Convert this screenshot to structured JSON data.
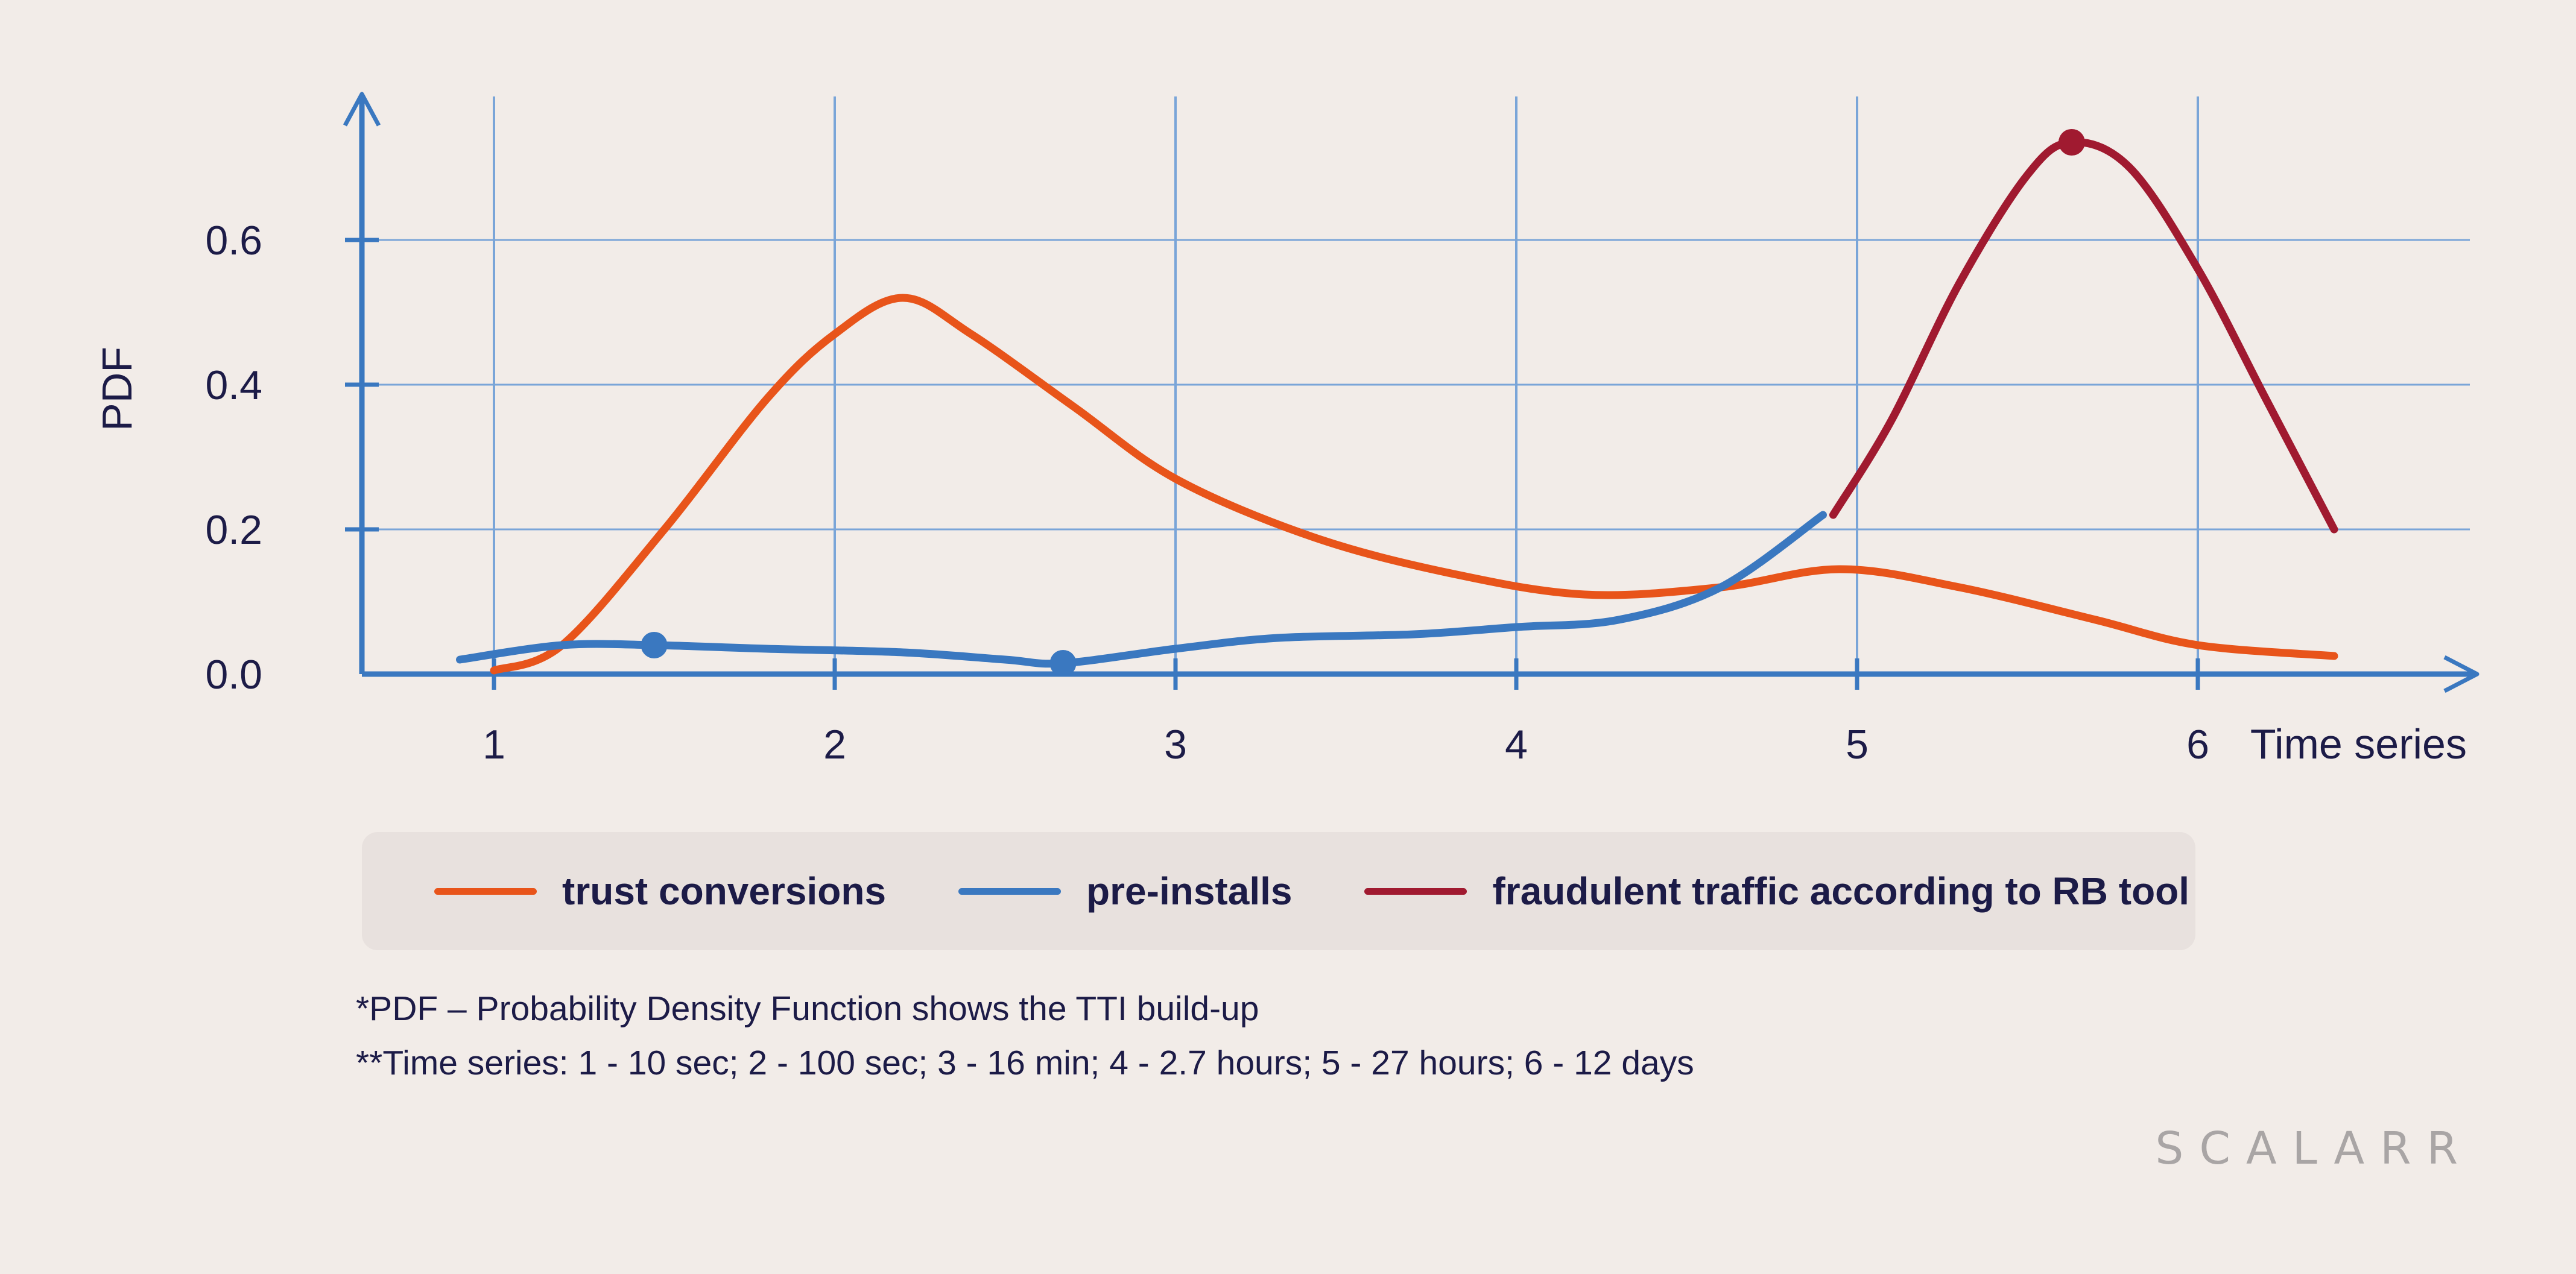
{
  "chart_data": {
    "type": "line",
    "ylabel": "PDF",
    "xlabel": "Time series",
    "x_ticks": [
      "1",
      "2",
      "3",
      "4",
      "5",
      "6"
    ],
    "y_ticks": [
      "0.0",
      "0.2",
      "0.4",
      "0.6"
    ],
    "xlim": [
      0.6,
      7.0
    ],
    "ylim": [
      0.0,
      0.78
    ],
    "grid": true,
    "series": [
      {
        "name": "trust conversions",
        "color": "#e8541a",
        "x": [
          1.0,
          1.2,
          1.5,
          1.8,
          2.0,
          2.2,
          2.4,
          2.7,
          3.0,
          3.4,
          3.8,
          4.2,
          4.6,
          4.95,
          5.3,
          5.7,
          6.0,
          6.4
        ],
        "y": [
          0.005,
          0.04,
          0.2,
          0.38,
          0.47,
          0.52,
          0.47,
          0.37,
          0.27,
          0.19,
          0.14,
          0.11,
          0.12,
          0.145,
          0.12,
          0.075,
          0.04,
          0.025
        ]
      },
      {
        "name": "pre-installs",
        "color": "#3a78c0",
        "x": [
          0.9,
          1.2,
          1.47,
          1.8,
          2.2,
          2.5,
          2.67,
          3.0,
          3.3,
          3.7,
          4.0,
          4.3,
          4.6,
          4.9
        ],
        "y": [
          0.02,
          0.04,
          0.04,
          0.035,
          0.03,
          0.02,
          0.015,
          0.035,
          0.05,
          0.055,
          0.065,
          0.075,
          0.12,
          0.22
        ],
        "markers": [
          {
            "x": 1.47,
            "y": 0.04
          },
          {
            "x": 2.67,
            "y": 0.015
          }
        ]
      },
      {
        "name": "fraudulent traffic according to RB tool",
        "color": "#a01a30",
        "x": [
          4.93,
          5.1,
          5.3,
          5.5,
          5.63,
          5.8,
          6.0,
          6.2,
          6.4
        ],
        "y": [
          0.22,
          0.35,
          0.54,
          0.69,
          0.735,
          0.7,
          0.56,
          0.38,
          0.2
        ],
        "markers": [
          {
            "x": 5.63,
            "y": 0.735
          }
        ]
      }
    ]
  },
  "legend": {
    "items": [
      {
        "label": "trust conversions",
        "color": "#e8541a"
      },
      {
        "label": "pre-installs",
        "color": "#3a78c0"
      },
      {
        "label": "fraudulent traffic according to RB tool",
        "color": "#a01a30"
      }
    ]
  },
  "notes": {
    "pdf": "*PDF – Probability Density Function shows the TTI build-up",
    "timeseries": "**Time series: 1 - 10 sec; 2 - 100 sec; 3 - 16 min; 4 - 2.7 hours; 5 - 27 hours; 6 - 12 days"
  },
  "brand": {
    "logo": "SCALARR"
  },
  "colors": {
    "axis": "#3a78c0",
    "grid": "#7aa5d8",
    "text": "#1c1b47",
    "background": "#f2ece8"
  }
}
